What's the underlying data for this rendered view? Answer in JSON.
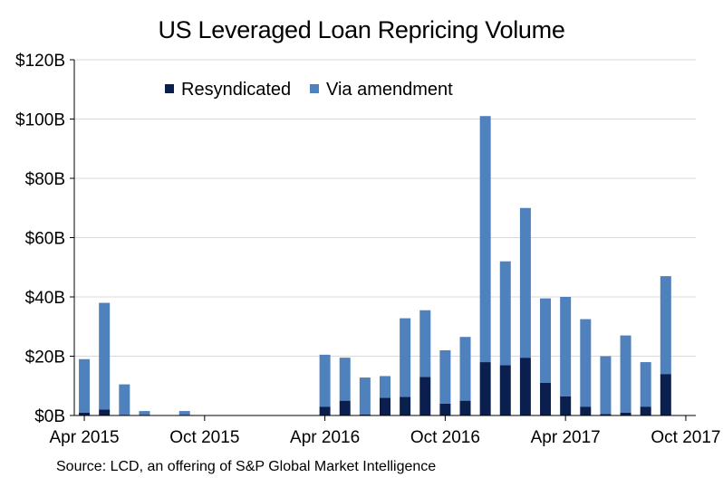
{
  "chart_data": {
    "type": "bar",
    "stacked": true,
    "title": "US Leveraged Loan Repricing Volume",
    "xlabel": "",
    "ylabel": "",
    "ylim": [
      0,
      120
    ],
    "y_ticks": [
      "$0B",
      "$20B",
      "$40B",
      "$60B",
      "$80B",
      "$100B",
      "$120B"
    ],
    "y_tick_values": [
      0,
      20,
      40,
      60,
      80,
      100,
      120
    ],
    "grid": true,
    "legend_position": "top-left",
    "categories": [
      "Apr 2015",
      "May 2015",
      "Jun 2015",
      "Jul 2015",
      "Aug 2015",
      "Sep 2015",
      "Oct 2015",
      "Nov 2015",
      "Dec 2015",
      "Jan 2016",
      "Feb 2016",
      "Mar 2016",
      "Apr 2016",
      "May 2016",
      "Jun 2016",
      "Jul 2016",
      "Aug 2016",
      "Sep 2016",
      "Oct 2016",
      "Nov 2016",
      "Dec 2016",
      "Jan 2017",
      "Feb 2017",
      "Mar 2017",
      "Apr 2017",
      "May 2017",
      "Jun 2017",
      "Jul 2017",
      "Aug 2017",
      "Sep 2017",
      "Oct 2017"
    ],
    "x_tick_labels": [
      {
        "label": "Apr 2015",
        "index": 0
      },
      {
        "label": "Oct 2015",
        "index": 6
      },
      {
        "label": "Apr 2016",
        "index": 12
      },
      {
        "label": "Oct 2016",
        "index": 18
      },
      {
        "label": "Apr 2017",
        "index": 24
      },
      {
        "label": "Oct 2017",
        "index": 30
      }
    ],
    "series": [
      {
        "name": "Resyndicated",
        "color": "#0a1f4e",
        "values": [
          1.0,
          2.0,
          0,
          0,
          0,
          0,
          0,
          0,
          0,
          0,
          0,
          0,
          3.0,
          5.0,
          0.3,
          6.0,
          6.3,
          13.0,
          4.0,
          5.0,
          18.0,
          17.0,
          19.5,
          11.0,
          6.5,
          3.0,
          0.5,
          1.0,
          3.0,
          14.0,
          0
        ]
      },
      {
        "name": "Via amendment",
        "color": "#4f81bd",
        "values": [
          18.0,
          36.0,
          10.5,
          1.5,
          0,
          1.5,
          0,
          0,
          0,
          0,
          0,
          0,
          17.5,
          14.5,
          12.5,
          7.3,
          26.5,
          22.5,
          18.0,
          21.5,
          83.0,
          35.0,
          50.5,
          28.5,
          33.5,
          29.5,
          19.5,
          26.0,
          15.0,
          33.0,
          0
        ]
      }
    ]
  },
  "source_note": "Source: LCD, an offering of S&P Global Market Intelligence"
}
